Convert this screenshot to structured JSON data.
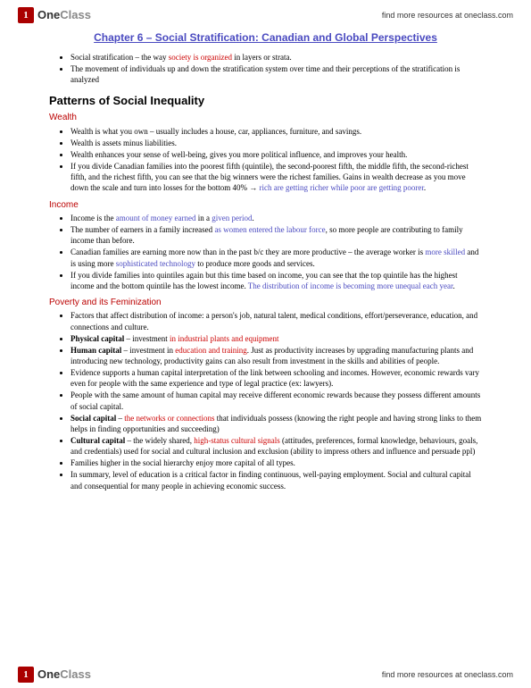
{
  "logo": {
    "text1": "One",
    "text2": "Class"
  },
  "headerLink": "find more resources at oneclass.com",
  "title": "Chapter 6 – Social Stratification: Canadian and Global Perspectives",
  "s1": [
    {
      "pre": "Social stratification – the way ",
      "r": "society is organized",
      "post": " in layers or strata."
    },
    {
      "t": "The movement of individuals up and down the stratification system over time and their perceptions of the stratification is analyzed"
    }
  ],
  "h2": "Patterns of Social Inequality",
  "wealth": {
    "h": "Wealth",
    "items": [
      {
        "t": "Wealth is what you own – usually includes a house, car, appliances, furniture, and savings."
      },
      {
        "t": "Wealth is assets minus liabilities."
      },
      {
        "t": "Wealth enhances your sense of well-being, gives you more political influence, and improves your health."
      },
      {
        "pre": "If you divide Canadian families into the poorest fifth (quintile), the second-poorest fifth, the middle fifth, the second-richest fifth, and the richest fifth, you can see that the big winners were the richest families. Gains in wealth decrease as you move down the scale and turn into losses for the bottom 40% → ",
        "b": "rich are getting richer while poor are getting poorer",
        "post": "."
      }
    ]
  },
  "income": {
    "h": "Income",
    "items": [
      {
        "pre": "Income is the ",
        "b1": "amount of money earned",
        "mid": " in a ",
        "b2": "given period",
        "post": "."
      },
      {
        "pre": "The number of earners in a family increased ",
        "b": "as women entered the labour force",
        "post": ", so more people are contributing to family income than before."
      },
      {
        "pre": "Canadian families are earning more now than in the past b/c they are more productive – the average worker is ",
        "b1": "more skilled",
        "mid": " and is using more ",
        "b2": "sophisticated technology",
        "post": " to produce more goods and services."
      },
      {
        "pre": "If you divide families into quintiles again but this time based on income, you can see that the top quintile has the highest income and the bottom quintile has the lowest income. ",
        "b": "The distribution of income is becoming more unequal each year",
        "post": "."
      }
    ]
  },
  "poverty": {
    "h": "Poverty and its Feminization",
    "items": [
      {
        "t": "Factors that affect distribution of income: a person's job, natural talent, medical conditions, effort/perseverance, education, and connections and culture."
      },
      {
        "bold": "Physical capital",
        "pre": " – investment ",
        "r": "in industrial plants and equipment"
      },
      {
        "bold": "Human capital",
        "pre": " – investment in ",
        "r": "education and training",
        "post": ". Just as productivity increases by upgrading manufacturing plants and introducing new technology, productivity gains can also result from investment in the skills and abilities of people."
      },
      {
        "t": "Evidence supports a human capital interpretation of the link between schooling and incomes. However, economic rewards vary even for people with the same experience and type of legal practice (ex: lawyers)."
      },
      {
        "t": "People with the same amount of human capital may receive different economic rewards because they possess different amounts of social capital."
      },
      {
        "bold": "Social capital",
        "pre": " – ",
        "r": "the networks or connections",
        "post": " that individuals possess (knowing the right people and having strong links to them helps in finding opportunities and succeeding)"
      },
      {
        "bold": "Cultural capital",
        "pre": " – the widely shared, ",
        "r": "high-status cultural signals",
        "post": " (attitudes, preferences, formal knowledge, behaviours, goals, and credentials) used for social and cultural inclusion and exclusion (ability to impress others and influence and persuade ppl)"
      },
      {
        "t": "Families higher in the social hierarchy enjoy more capital of all types."
      },
      {
        "t": "In summary, level of education is a critical factor in finding continuous, well-paying employment. Social and cultural capital and consequential for many people in achieving economic success."
      }
    ]
  }
}
